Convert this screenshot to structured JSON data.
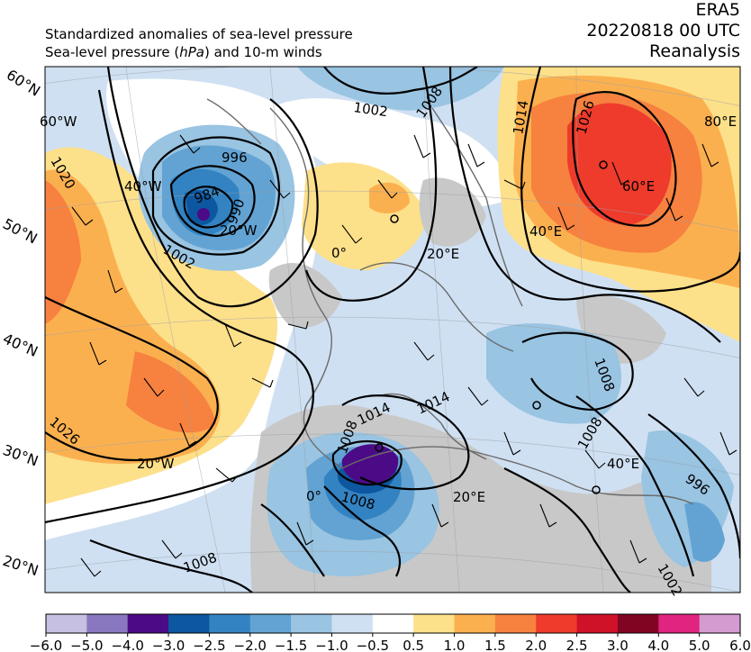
{
  "header": {
    "line1": "Standardized anomalies of sea-level pressure",
    "line2_prefix": "Sea-level pressure (",
    "line2_unit": "hPa",
    "line2_suffix": ") and 10-m winds",
    "model": "ERA5",
    "datetime": "20220818 00 UTC",
    "product": "Reanalysis"
  },
  "map": {
    "lat_labels": [
      "60°N",
      "50°N",
      "40°N",
      "30°N",
      "20°N"
    ],
    "lon_labels": [
      "60°W",
      "40°W",
      "20°W",
      "0°",
      "20°E",
      "40°E",
      "60°E",
      "80°E",
      "20°W",
      "0°",
      "20°E",
      "40°E"
    ],
    "isobar_labels": [
      "1002",
      "1008",
      "1014",
      "1026",
      "996",
      "984",
      "990",
      "1002",
      "1020",
      "1026",
      "1014",
      "1014",
      "1008",
      "1008",
      "996",
      "1002",
      "1008",
      "1008",
      "1008"
    ],
    "colors": {
      "land_gray": "#c8c8c8",
      "ocean_white": "#ffffff"
    }
  },
  "colorbar": {
    "ticks": [
      "−6.0",
      "−5.0",
      "−4.0",
      "−3.0",
      "−2.5",
      "−2.0",
      "−1.5",
      "−1.0",
      "−0.5",
      "0.5",
      "1.0",
      "1.5",
      "2.0",
      "2.5",
      "3.0",
      "4.0",
      "5.0",
      "6.0"
    ],
    "colors": [
      "#c6c1e2",
      "#8978bf",
      "#4c0b86",
      "#0d57a0",
      "#3383c2",
      "#62a3d3",
      "#99c4e2",
      "#cfe0f2",
      "#ffffff",
      "#fde08a",
      "#fbb04f",
      "#f7813f",
      "#ee3b2c",
      "#cf1228",
      "#7f0522",
      "#e0247f",
      "#d49bd1"
    ]
  }
}
